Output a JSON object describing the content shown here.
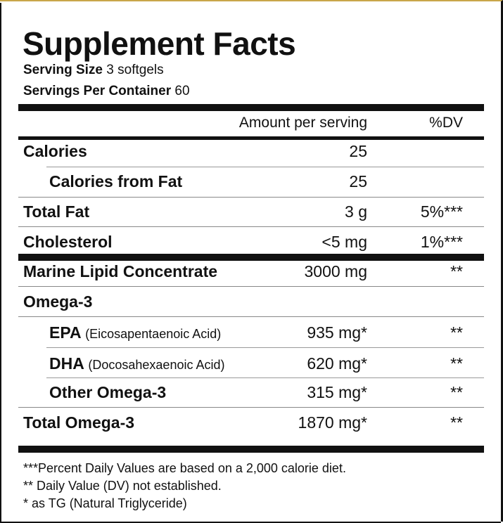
{
  "title": "Supplement Facts",
  "serving_size_label": "Serving Size",
  "serving_size_value": "3 softgels",
  "servings_per_container_label": "Servings Per Container",
  "servings_per_container_value": "60",
  "header": {
    "amount": "Amount per serving",
    "dv": "%DV"
  },
  "rows": [
    {
      "label": "Calories",
      "sub": "",
      "amount": "25",
      "dv": ""
    },
    {
      "label": "Calories from Fat",
      "sub": "",
      "amount": "25",
      "dv": ""
    },
    {
      "label": "Total Fat",
      "sub": "",
      "amount": "3 g",
      "dv": "5%***"
    },
    {
      "label": "Cholesterol",
      "sub": "",
      "amount": "<5 mg",
      "dv": "1%***"
    },
    {
      "label": "Marine Lipid Concentrate",
      "sub": "",
      "amount": "3000 mg",
      "dv": "**"
    },
    {
      "label": "Omega-3",
      "sub": "",
      "amount": "",
      "dv": ""
    },
    {
      "label": "EPA",
      "sub": "(Eicosapentaenoic Acid)",
      "amount": "935 mg*",
      "dv": "**"
    },
    {
      "label": "DHA",
      "sub": "(Docosahexaenoic Acid)",
      "amount": "620 mg*",
      "dv": "**"
    },
    {
      "label": "Other Omega-3",
      "sub": "",
      "amount": "315 mg*",
      "dv": "**"
    },
    {
      "label": "Total Omega-3",
      "sub": "",
      "amount": "1870 mg*",
      "dv": "**"
    }
  ],
  "footnotes": [
    "***Percent Daily Values are based on a 2,000 calorie diet.",
    "** Daily Value (DV) not established.",
    "* as TG (Natural Triglyceride)"
  ]
}
